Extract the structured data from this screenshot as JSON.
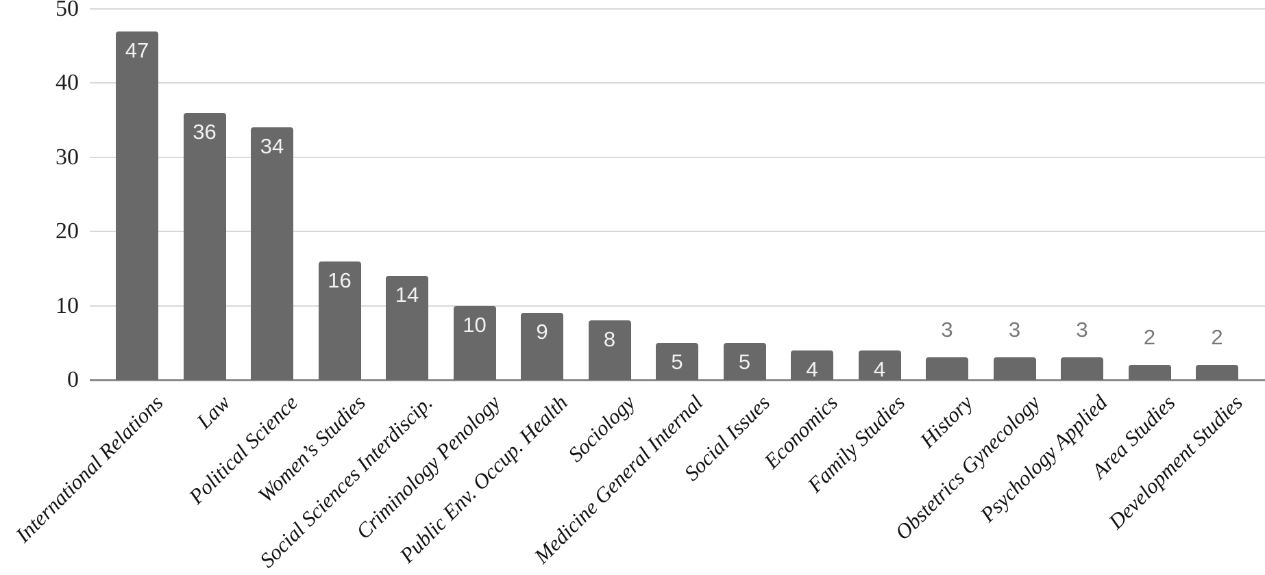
{
  "chart_data": {
    "type": "bar",
    "title": "",
    "xlabel": "",
    "ylabel": "",
    "categories": [
      "International Relations",
      "Law",
      "Political Science",
      "Women’s Studies",
      "Social Sciences Interdiscip.",
      "Criminology Penology",
      "Public Env. Occup. Health",
      "Sociology",
      "Medicine General Internal",
      "Social Issues",
      "Economics",
      "Family Studies",
      "History",
      "Obstetrics Gynecology",
      "Psychology Applied",
      "Area Studies",
      "Development Studies"
    ],
    "values": [
      47,
      36,
      34,
      16,
      14,
      10,
      9,
      8,
      5,
      5,
      4,
      4,
      3,
      3,
      3,
      2,
      2
    ],
    "ylim": [
      0,
      50
    ],
    "yticks": [
      0,
      10,
      20,
      30,
      40,
      50
    ],
    "grid": "horizontal",
    "legend": "none",
    "bar_color": "#696969",
    "gridline_color": "#d9d9d9",
    "axis_line_color": "#8a8a8a",
    "value_label_color_inside": "#f2f2f2",
    "value_label_color_outside": "#777777",
    "value_label_inside_min": 4
  }
}
